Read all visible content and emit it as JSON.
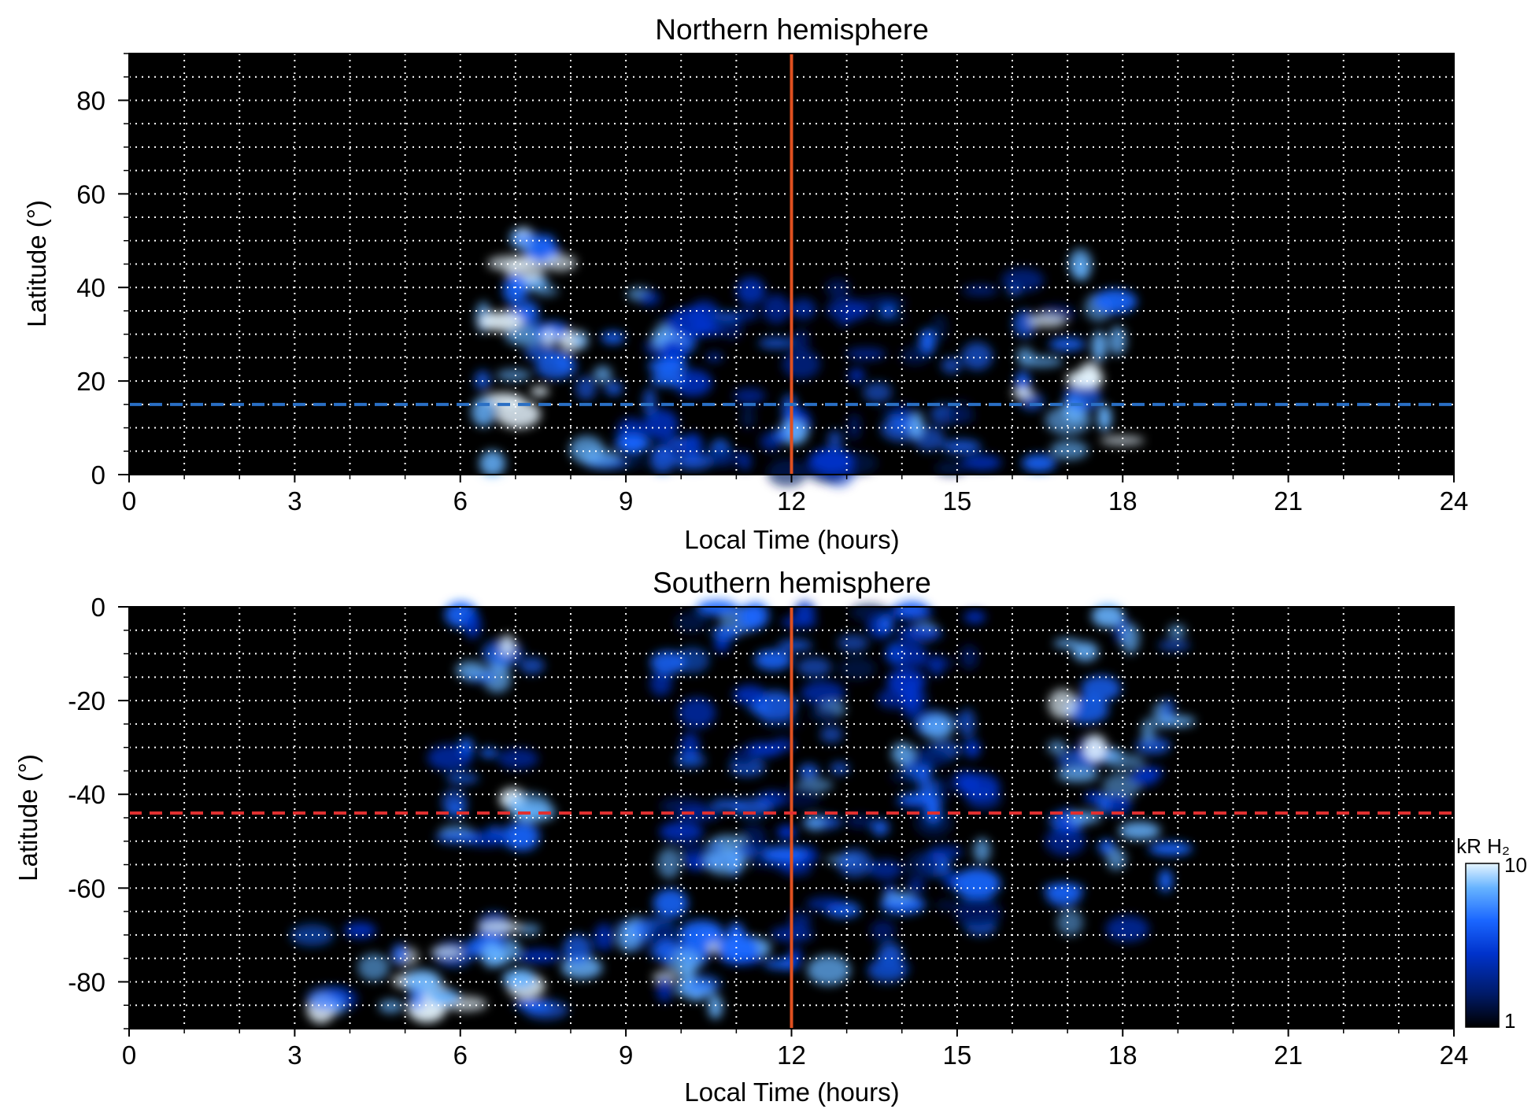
{
  "chart_data": [
    {
      "type": "heatmap",
      "title": "Northern hemisphere",
      "xlabel": "Local Time (hours)",
      "ylabel": "Latitude (°)",
      "xlim": [
        0,
        24
      ],
      "ylim": [
        0,
        90
      ],
      "xticks": [
        "0",
        "3",
        "6",
        "9",
        "12",
        "15",
        "18",
        "21",
        "24"
      ],
      "yticks": [
        "0",
        "20",
        "40",
        "60",
        "80"
      ],
      "grid": true,
      "reference_lines": [
        {
          "orientation": "vertical",
          "x": 12,
          "color": "#e05020",
          "style": "solid"
        },
        {
          "orientation": "horizontal",
          "y": 15,
          "color": "#2a6fc4",
          "style": "dashed"
        }
      ],
      "emission_regions": [
        {
          "x": [
            6.4,
            8.8
          ],
          "y": [
            1,
            52
          ],
          "level": 0.8
        },
        {
          "x": [
            16.0,
            18.0
          ],
          "y": [
            0,
            48
          ],
          "level": 0.75
        },
        {
          "x": [
            9.0,
            15.5
          ],
          "y": [
            0,
            40
          ],
          "level": 0.45
        }
      ]
    },
    {
      "type": "heatmap",
      "title": "Southern hemisphere",
      "xlabel": "Local Time (hours)",
      "ylabel": "Latitude (°)",
      "xlim": [
        0,
        24
      ],
      "ylim": [
        -90,
        0
      ],
      "xticks": [
        "0",
        "3",
        "6",
        "9",
        "12",
        "15",
        "18",
        "21",
        "24"
      ],
      "yticks": [
        "0",
        "-20",
        "-40",
        "-60",
        "-80"
      ],
      "grid": true,
      "reference_lines": [
        {
          "orientation": "vertical",
          "x": 12,
          "color": "#e05020",
          "style": "solid"
        },
        {
          "orientation": "horizontal",
          "y": -44,
          "color": "#e03030",
          "style": "dashed"
        }
      ],
      "emission_regions": [
        {
          "x": [
            5.8,
            7.4
          ],
          "y": [
            -50,
            0
          ],
          "level": 0.7
        },
        {
          "x": [
            3.0,
            11.0
          ],
          "y": [
            -86,
            -68
          ],
          "level": 0.75
        },
        {
          "x": [
            16.8,
            19.0
          ],
          "y": [
            -70,
            0
          ],
          "level": 0.65
        },
        {
          "x": [
            9.5,
            15.5
          ],
          "y": [
            -78,
            0
          ],
          "level": 0.5
        }
      ]
    }
  ],
  "colorbar": {
    "label": "kR H₂",
    "min_label": "1",
    "max_label": "10",
    "scale": "log",
    "range": [
      1,
      10
    ],
    "colors": [
      "#000000",
      "#001a66",
      "#0033cc",
      "#1a66ff",
      "#66b3ff",
      "#e6f5ff"
    ]
  }
}
